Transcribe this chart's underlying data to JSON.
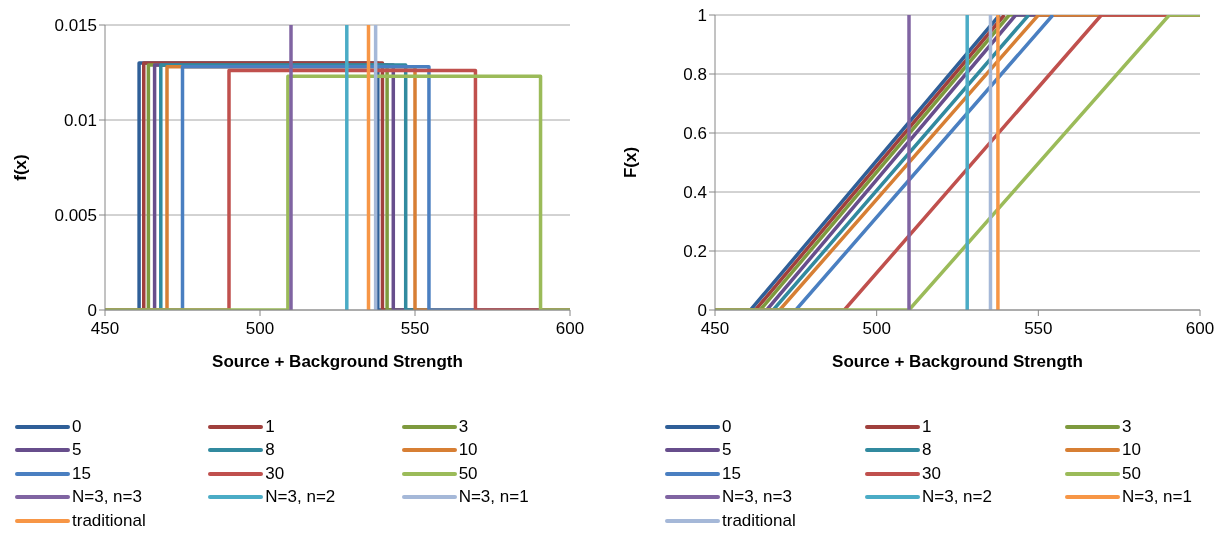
{
  "chart_data": [
    {
      "type": "line",
      "xlabel": "Source + Background Strength",
      "ylabel": "f(x)",
      "xlim": [
        450,
        600
      ],
      "xticks": [
        450,
        500,
        550,
        600
      ],
      "ylim": [
        0,
        0.015
      ],
      "yticks": [
        0,
        0.005,
        0.01,
        0.015
      ],
      "grid": "y",
      "legend": "bottom",
      "marker": "none",
      "line_style": "solid",
      "series": [
        {
          "name": "0",
          "color": "#2f5f98",
          "x": [
            450,
            461,
            461,
            538,
            538,
            600
          ],
          "values": [
            0,
            0,
            0.013,
            0.013,
            0,
            0
          ]
        },
        {
          "name": "1",
          "color": "#a0403d",
          "x": [
            450,
            462.5,
            462.5,
            539.5,
            539.5,
            600
          ],
          "values": [
            0,
            0,
            0.013,
            0.013,
            0,
            0
          ]
        },
        {
          "name": "3",
          "color": "#7e9a3e",
          "x": [
            450,
            464,
            464,
            541,
            541,
            600
          ],
          "values": [
            0,
            0,
            0.0129,
            0.0129,
            0,
            0
          ]
        },
        {
          "name": "5",
          "color": "#674e8c",
          "x": [
            450,
            466,
            466,
            543,
            543,
            600
          ],
          "values": [
            0,
            0,
            0.0129,
            0.0129,
            0,
            0
          ]
        },
        {
          "name": "8",
          "color": "#318a9f",
          "x": [
            450,
            468,
            468,
            547,
            547,
            600
          ],
          "values": [
            0,
            0,
            0.0129,
            0.0129,
            0,
            0
          ]
        },
        {
          "name": "10",
          "color": "#d77f34",
          "x": [
            450,
            470,
            470,
            550,
            550,
            600
          ],
          "values": [
            0,
            0,
            0.0128,
            0.0128,
            0,
            0
          ]
        },
        {
          "name": "15",
          "color": "#4a7fc1",
          "x": [
            450,
            475,
            475,
            554.5,
            554.5,
            600
          ],
          "values": [
            0,
            0,
            0.0128,
            0.0128,
            0,
            0
          ]
        },
        {
          "name": "30",
          "color": "#c0504d",
          "x": [
            450,
            490,
            490,
            569.5,
            569.5,
            600
          ],
          "values": [
            0,
            0,
            0.0126,
            0.0126,
            0,
            0
          ]
        },
        {
          "name": "50",
          "color": "#9bbb59",
          "x": [
            450,
            509,
            509,
            590.5,
            590.5,
            600
          ],
          "values": [
            0,
            0,
            0.0123,
            0.0123,
            0,
            0
          ]
        },
        {
          "name": "N=3, n=3",
          "color": "#8064a2",
          "x": [
            510,
            510
          ],
          "values": [
            0,
            0.015
          ]
        },
        {
          "name": "N=3, n=2",
          "color": "#4bacc6",
          "x": [
            528,
            528
          ],
          "values": [
            0,
            0.015
          ]
        },
        {
          "name": "N=3, n=1",
          "color": "#a5b8d8",
          "x": [
            537.3,
            537.3
          ],
          "values": [
            0,
            0.015
          ]
        },
        {
          "name": "traditional",
          "color": "#f79646",
          "x": [
            535,
            535
          ],
          "values": [
            0,
            0.015
          ]
        }
      ]
    },
    {
      "type": "line",
      "xlabel": "Source + Background Strength",
      "ylabel": "F(x)",
      "xlim": [
        450,
        600
      ],
      "xticks": [
        450,
        500,
        550,
        600
      ],
      "ylim": [
        0,
        1
      ],
      "yticks": [
        0,
        0.2,
        0.4,
        0.6,
        0.8,
        1
      ],
      "grid": "y",
      "legend": "bottom",
      "marker": "none",
      "line_style": "solid",
      "series": [
        {
          "name": "0",
          "color": "#2f5f98",
          "x": [
            450,
            461,
            538
          ],
          "values": [
            0,
            0,
            1
          ]
        },
        {
          "name": "1",
          "color": "#a0403d",
          "x": [
            450,
            462.5,
            539.5
          ],
          "values": [
            0,
            0,
            1
          ]
        },
        {
          "name": "3",
          "color": "#7e9a3e",
          "x": [
            450,
            464,
            541,
            600
          ],
          "values": [
            0,
            0,
            1,
            1
          ]
        },
        {
          "name": "5",
          "color": "#674e8c",
          "x": [
            450,
            466,
            543,
            600
          ],
          "values": [
            0,
            0,
            1,
            1
          ]
        },
        {
          "name": "8",
          "color": "#318a9f",
          "x": [
            450,
            468,
            547
          ],
          "values": [
            0,
            0,
            1
          ]
        },
        {
          "name": "10",
          "color": "#d77f34",
          "x": [
            450,
            470,
            550,
            600
          ],
          "values": [
            0,
            0,
            1,
            1
          ]
        },
        {
          "name": "15",
          "color": "#4a7fc1",
          "x": [
            450,
            475,
            554.5
          ],
          "values": [
            0,
            0,
            1
          ]
        },
        {
          "name": "30",
          "color": "#c0504d",
          "x": [
            450,
            490,
            569.5,
            600
          ],
          "values": [
            0,
            0,
            1,
            1
          ]
        },
        {
          "name": "50",
          "color": "#9bbb59",
          "x": [
            450,
            510,
            590.5,
            600
          ],
          "values": [
            0,
            0,
            1,
            1
          ]
        },
        {
          "name": "N=3, n=3",
          "color": "#8064a2",
          "x": [
            510,
            510
          ],
          "values": [
            0,
            1
          ]
        },
        {
          "name": "N=3, n=2",
          "color": "#4bacc6",
          "x": [
            528,
            528
          ],
          "values": [
            0,
            1
          ]
        },
        {
          "name": "N=3, n=1",
          "color": "#f79646",
          "x": [
            537.5,
            537.5
          ],
          "values": [
            0,
            1
          ]
        },
        {
          "name": "traditional",
          "color": "#a5b8d8",
          "x": [
            535.2,
            535.2
          ],
          "values": [
            0,
            1
          ]
        }
      ]
    }
  ]
}
